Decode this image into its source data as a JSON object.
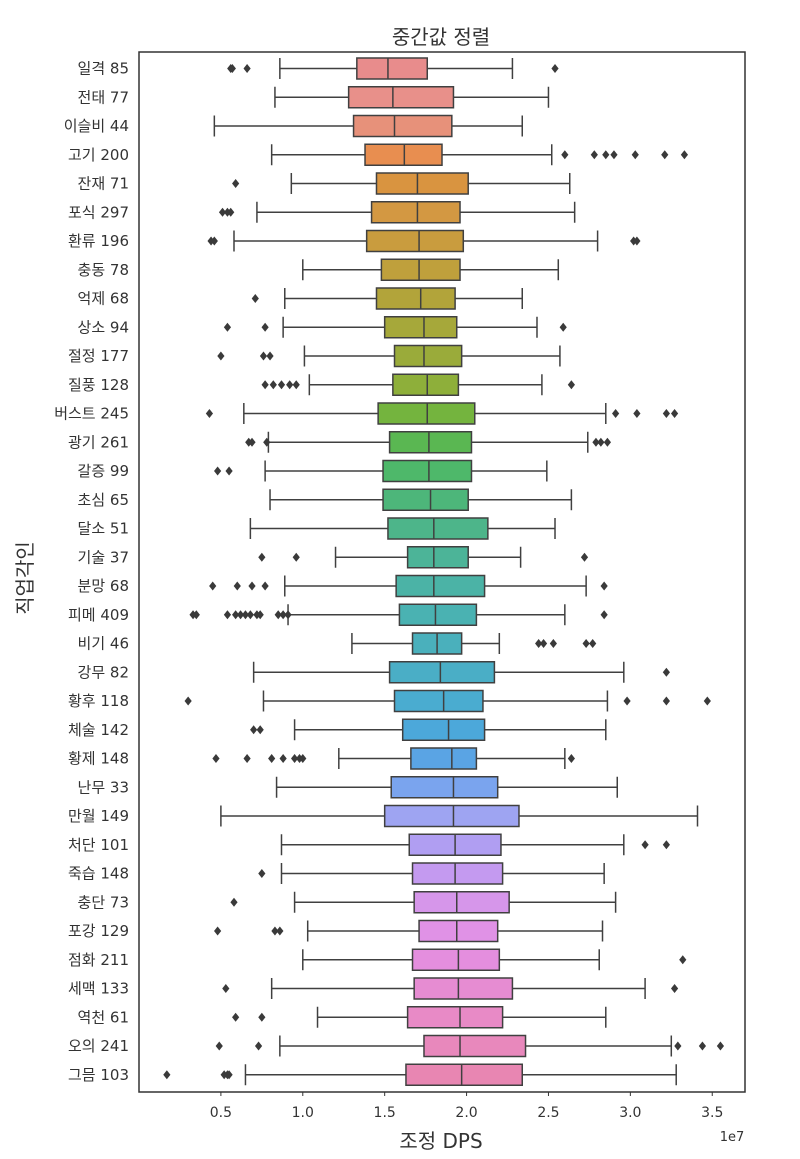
{
  "chart_data": {
    "type": "box",
    "orientation": "horizontal",
    "title": "중간값 정렬",
    "xlabel": "조정 DPS",
    "ylabel": "직업각인",
    "x_scale_label": "1e7",
    "xlim": [
      0.0,
      3.7
    ],
    "xticks": [
      "0.5",
      "1.0",
      "1.5",
      "2.0",
      "2.5",
      "3.0",
      "3.5"
    ],
    "xtick_values": [
      0.5,
      1.0,
      1.5,
      2.0,
      2.5,
      3.0,
      3.5
    ],
    "categories": [
      "일격 85",
      "전태 77",
      "이슬비 44",
      "고기 200",
      "잔재 71",
      "포식 297",
      "환류 196",
      "충동 78",
      "억제 68",
      "상소 94",
      "절정 177",
      "질풍 128",
      "버스트 245",
      "광기 261",
      "갈증 99",
      "초심 65",
      "달소 51",
      "기술 37",
      "분망 68",
      "피메 409",
      "비기 46",
      "강무 82",
      "황후 118",
      "체술 142",
      "황제 148",
      "난무 33",
      "만월 149",
      "처단 101",
      "죽습 148",
      "충단 73",
      "포강 129",
      "점화 211",
      "세맥 133",
      "역천 61",
      "오의 241",
      "그믐 103"
    ],
    "boxes": [
      {
        "whislo": 0.86,
        "q1": 1.33,
        "med": 1.52,
        "q3": 1.76,
        "whishi": 2.28,
        "fliers": [
          0.56,
          0.57,
          0.66,
          2.54
        ],
        "color": "#e88c8c"
      },
      {
        "whislo": 0.83,
        "q1": 1.28,
        "med": 1.55,
        "q3": 1.92,
        "whishi": 2.5,
        "fliers": [],
        "color": "#e8908a"
      },
      {
        "whislo": 0.46,
        "q1": 1.31,
        "med": 1.56,
        "q3": 1.91,
        "whishi": 2.34,
        "fliers": [],
        "color": "#e7917a"
      },
      {
        "whislo": 0.81,
        "q1": 1.38,
        "med": 1.62,
        "q3": 1.85,
        "whishi": 2.52,
        "fliers": [
          2.6,
          2.78,
          2.85,
          2.9,
          3.03,
          3.21,
          3.33
        ],
        "color": "#e88e50"
      },
      {
        "whislo": 0.93,
        "q1": 1.45,
        "med": 1.7,
        "q3": 2.01,
        "whishi": 2.63,
        "fliers": [
          0.59
        ],
        "color": "#d99440"
      },
      {
        "whislo": 0.72,
        "q1": 1.42,
        "med": 1.7,
        "q3": 1.96,
        "whishi": 2.66,
        "fliers": [
          0.51,
          0.54,
          0.56
        ],
        "color": "#d39842"
      },
      {
        "whislo": 0.58,
        "q1": 1.39,
        "med": 1.71,
        "q3": 1.98,
        "whishi": 2.8,
        "fliers": [
          0.44,
          0.46,
          3.02,
          3.04
        ],
        "color": "#c99c3e"
      },
      {
        "whislo": 1.0,
        "q1": 1.48,
        "med": 1.71,
        "q3": 1.96,
        "whishi": 2.56,
        "fliers": [],
        "color": "#bfa03c"
      },
      {
        "whislo": 0.89,
        "q1": 1.45,
        "med": 1.72,
        "q3": 1.93,
        "whishi": 2.34,
        "fliers": [
          0.71
        ],
        "color": "#b2a43a"
      },
      {
        "whislo": 0.88,
        "q1": 1.5,
        "med": 1.74,
        "q3": 1.94,
        "whishi": 2.43,
        "fliers": [
          0.54,
          0.77,
          2.59
        ],
        "color": "#a6a83a"
      },
      {
        "whislo": 1.01,
        "q1": 1.56,
        "med": 1.74,
        "q3": 1.97,
        "whishi": 2.57,
        "fliers": [
          0.5,
          0.76,
          0.8
        ],
        "color": "#9aab3a"
      },
      {
        "whislo": 1.04,
        "q1": 1.55,
        "med": 1.76,
        "q3": 1.95,
        "whishi": 2.46,
        "fliers": [
          0.77,
          0.82,
          0.87,
          0.92,
          0.96,
          2.64
        ],
        "color": "#8eaf3a"
      },
      {
        "whislo": 0.64,
        "q1": 1.46,
        "med": 1.76,
        "q3": 2.05,
        "whishi": 2.85,
        "fliers": [
          0.43,
          2.91,
          3.04,
          3.22,
          3.27
        ],
        "color": "#74b43e"
      },
      {
        "whislo": 0.79,
        "q1": 1.53,
        "med": 1.77,
        "q3": 2.03,
        "whishi": 2.74,
        "fliers": [
          0.67,
          0.69,
          0.78,
          2.79,
          2.82,
          2.86
        ],
        "color": "#5ab752"
      },
      {
        "whislo": 0.77,
        "q1": 1.49,
        "med": 1.77,
        "q3": 2.03,
        "whishi": 2.49,
        "fliers": [
          0.48,
          0.55
        ],
        "color": "#4eb86a"
      },
      {
        "whislo": 0.8,
        "q1": 1.49,
        "med": 1.78,
        "q3": 2.01,
        "whishi": 2.64,
        "fliers": [],
        "color": "#4db67a"
      },
      {
        "whislo": 0.68,
        "q1": 1.52,
        "med": 1.8,
        "q3": 2.13,
        "whishi": 2.54,
        "fliers": [],
        "color": "#4db58a"
      },
      {
        "whislo": 1.2,
        "q1": 1.64,
        "med": 1.8,
        "q3": 2.01,
        "whishi": 2.33,
        "fliers": [
          0.75,
          0.96,
          2.72
        ],
        "color": "#4cb498"
      },
      {
        "whislo": 0.89,
        "q1": 1.57,
        "med": 1.8,
        "q3": 2.11,
        "whishi": 2.73,
        "fliers": [
          0.45,
          0.6,
          0.69,
          0.77,
          2.84
        ],
        "color": "#4bb3a6"
      },
      {
        "whislo": 0.91,
        "q1": 1.59,
        "med": 1.81,
        "q3": 2.06,
        "whishi": 2.6,
        "fliers": [
          0.33,
          0.35,
          0.54,
          0.59,
          0.62,
          0.65,
          0.68,
          0.72,
          0.74,
          0.85,
          0.88,
          0.91,
          2.84
        ],
        "color": "#4ab2b2"
      },
      {
        "whislo": 1.3,
        "q1": 1.67,
        "med": 1.82,
        "q3": 1.97,
        "whishi": 2.2,
        "fliers": [
          2.44,
          2.47,
          2.53,
          2.73,
          2.77
        ],
        "color": "#4ab0bc"
      },
      {
        "whislo": 0.7,
        "q1": 1.53,
        "med": 1.84,
        "q3": 2.17,
        "whishi": 2.96,
        "fliers": [
          3.22
        ],
        "color": "#4aaec6"
      },
      {
        "whislo": 0.76,
        "q1": 1.56,
        "med": 1.86,
        "q3": 2.1,
        "whishi": 2.86,
        "fliers": [
          0.3,
          2.98,
          3.22,
          3.47
        ],
        "color": "#4aacd0"
      },
      {
        "whislo": 0.95,
        "q1": 1.61,
        "med": 1.89,
        "q3": 2.11,
        "whishi": 2.85,
        "fliers": [
          0.7,
          0.74
        ],
        "color": "#4ca8da"
      },
      {
        "whislo": 1.22,
        "q1": 1.66,
        "med": 1.91,
        "q3": 2.06,
        "whishi": 2.6,
        "fliers": [
          0.47,
          0.66,
          0.81,
          0.88,
          0.95,
          0.98,
          1.0,
          2.64
        ],
        "color": "#5aa4e4"
      },
      {
        "whislo": 0.84,
        "q1": 1.54,
        "med": 1.92,
        "q3": 2.19,
        "whishi": 2.92,
        "fliers": [],
        "color": "#7aa4ee"
      },
      {
        "whislo": 0.5,
        "q1": 1.5,
        "med": 1.92,
        "q3": 2.32,
        "whishi": 3.41,
        "fliers": [],
        "color": "#9ea4f2"
      },
      {
        "whislo": 0.87,
        "q1": 1.65,
        "med": 1.93,
        "q3": 2.21,
        "whishi": 2.96,
        "fliers": [
          3.09,
          3.22
        ],
        "color": "#b09ef2"
      },
      {
        "whislo": 0.87,
        "q1": 1.67,
        "med": 1.93,
        "q3": 2.22,
        "whishi": 2.84,
        "fliers": [
          0.75
        ],
        "color": "#c49af0"
      },
      {
        "whislo": 0.95,
        "q1": 1.68,
        "med": 1.94,
        "q3": 2.26,
        "whishi": 2.91,
        "fliers": [
          0.58
        ],
        "color": "#d696ea"
      },
      {
        "whislo": 1.03,
        "q1": 1.71,
        "med": 1.94,
        "q3": 2.19,
        "whishi": 2.83,
        "fliers": [
          0.48,
          0.83,
          0.86
        ],
        "color": "#e092e6"
      },
      {
        "whislo": 1.0,
        "q1": 1.67,
        "med": 1.95,
        "q3": 2.2,
        "whishi": 2.81,
        "fliers": [
          3.32
        ],
        "color": "#e48ede"
      },
      {
        "whislo": 0.81,
        "q1": 1.68,
        "med": 1.95,
        "q3": 2.28,
        "whishi": 3.09,
        "fliers": [
          0.53,
          3.27
        ],
        "color": "#e68cd2"
      },
      {
        "whislo": 1.09,
        "q1": 1.64,
        "med": 1.96,
        "q3": 2.22,
        "whishi": 2.85,
        "fliers": [
          0.59,
          0.75
        ],
        "color": "#e88ac6"
      },
      {
        "whislo": 0.86,
        "q1": 1.74,
        "med": 1.96,
        "q3": 2.36,
        "whishi": 3.25,
        "fliers": [
          0.49,
          0.73,
          3.29,
          3.44,
          3.55
        ],
        "color": "#e888bc"
      },
      {
        "whislo": 0.65,
        "q1": 1.63,
        "med": 1.97,
        "q3": 2.34,
        "whishi": 3.28,
        "fliers": [
          0.17,
          0.52,
          0.54,
          0.55
        ],
        "color": "#e886b2"
      }
    ],
    "grid": false,
    "legend": "none"
  }
}
